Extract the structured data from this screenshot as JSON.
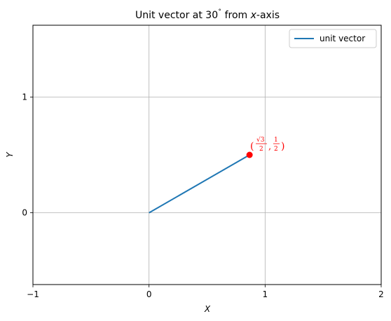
{
  "chart_data": {
    "type": "line",
    "title_prefix": "Unit vector at 30",
    "title_degree": "˚",
    "title_from": " from ",
    "title_var": "x",
    "title_suffix": "-axis",
    "xlabel": "X",
    "ylabel": "Y",
    "xlim": [
      -1,
      2
    ],
    "ylim": [
      -0.62,
      1.62
    ],
    "x_ticks": [
      -1,
      0,
      1,
      2
    ],
    "x_tick_labels": [
      "−1",
      "0",
      "1",
      "2"
    ],
    "y_ticks": [
      0,
      1
    ],
    "y_tick_labels": [
      "0",
      "1"
    ],
    "grid": true,
    "legend_position": "top-right",
    "series": [
      {
        "name": "unit vector",
        "color": "#1f77b4",
        "x": [
          0,
          0.866
        ],
        "y": [
          0,
          0.5
        ]
      }
    ],
    "point": {
      "x": 0.866,
      "y": 0.5,
      "color": "#ff0000"
    },
    "annotation": {
      "open": "(",
      "num1": "√3",
      "den1": "2",
      "comma": ",",
      "num2": "1",
      "den2": "2",
      "close": ")",
      "color": "#ff0000"
    }
  }
}
